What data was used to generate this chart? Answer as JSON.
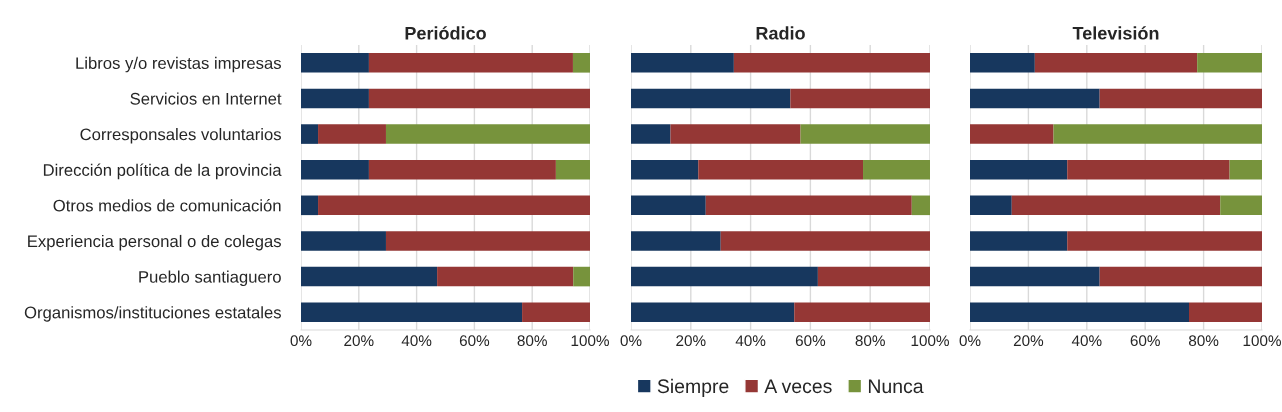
{
  "chart_data": [
    {
      "type": "bar",
      "orientation": "horizontal",
      "stacked": true,
      "title": "Periódico",
      "grid": "x",
      "legend": false,
      "categories": [
        "Libros y/o revistas impresas",
        "Servicios en Internet",
        "Corresponsales voluntarios",
        "Dirección política de la provincia",
        "Otros medios de comunicación",
        "Experiencia personal o de colegas",
        "Pueblo santiaguero",
        "Organismos/instituciones estatales"
      ],
      "xlim": [
        0,
        100
      ],
      "xticks": [
        {
          "value": 0,
          "label": "0%"
        },
        {
          "value": 20,
          "label": "20%"
        },
        {
          "value": 40,
          "label": "40%"
        },
        {
          "value": 60,
          "label": "60%"
        },
        {
          "value": 80,
          "label": "80%"
        },
        {
          "value": 100,
          "label": "100%"
        }
      ],
      "series": [
        {
          "color": "#17375e",
          "values": [
            23.5,
            23.5,
            5.9,
            23.5,
            5.9,
            29.4,
            47.1,
            76.5
          ]
        },
        {
          "color": "#953735",
          "values": [
            70.6,
            76.5,
            23.5,
            64.7,
            94.1,
            70.6,
            47.1,
            23.5
          ]
        },
        {
          "color": "#77933c",
          "values": [
            5.9,
            null,
            70.6,
            11.8,
            null,
            null,
            5.8,
            null
          ]
        }
      ]
    },
    {
      "type": "bar",
      "orientation": "horizontal",
      "stacked": true,
      "title": "Radio",
      "grid": "x",
      "legend": "bottom",
      "tick_labels": "x",
      "categories": [
        null,
        null,
        null,
        null,
        null,
        null,
        null,
        null
      ],
      "xlim": [
        0,
        100
      ],
      "xticks": [
        {
          "value": 0,
          "label": "0%"
        },
        {
          "value": 20,
          "label": "20%"
        },
        {
          "value": 40,
          "label": "40%"
        },
        {
          "value": 60,
          "label": "60%"
        },
        {
          "value": 80,
          "label": "80%"
        },
        {
          "value": 100,
          "label": "100%"
        }
      ],
      "series": [
        {
          "name": "Siempre",
          "color": "#17375e",
          "values": [
            34.4,
            53.3,
            13.2,
            22.5,
            25.0,
            30.0,
            62.5,
            54.6
          ]
        },
        {
          "name": "A veces",
          "color": "#953735",
          "values": [
            65.6,
            46.7,
            43.5,
            55.1,
            68.9,
            70.0,
            37.5,
            45.4
          ]
        },
        {
          "name": "Nunca",
          "color": "#77933c",
          "values": [
            null,
            null,
            43.3,
            22.4,
            6.1,
            null,
            null,
            null
          ]
        }
      ]
    },
    {
      "type": "bar",
      "orientation": "horizontal",
      "stacked": true,
      "title": "Televisión",
      "grid": "x",
      "legend": false,
      "tick_labels": "x",
      "categories": [
        null,
        null,
        null,
        null,
        null,
        null,
        null,
        null
      ],
      "xlim": [
        0,
        100
      ],
      "xticks": [
        {
          "value": 0,
          "label": "0%"
        },
        {
          "value": 20,
          "label": "20%"
        },
        {
          "value": 40,
          "label": "40%"
        },
        {
          "value": 60,
          "label": "60%"
        },
        {
          "value": 80,
          "label": "80%"
        },
        {
          "value": 100,
          "label": "100%"
        }
      ],
      "series": [
        {
          "color": "#17375e",
          "values": [
            22.2,
            44.4,
            null,
            33.3,
            14.3,
            33.3,
            44.4,
            75.0
          ]
        },
        {
          "color": "#953735",
          "values": [
            55.6,
            55.6,
            28.6,
            55.6,
            71.4,
            66.7,
            55.6,
            25.0
          ]
        },
        {
          "color": "#77933c",
          "values": [
            22.2,
            null,
            71.4,
            11.1,
            14.3,
            null,
            null,
            null
          ]
        }
      ]
    }
  ]
}
